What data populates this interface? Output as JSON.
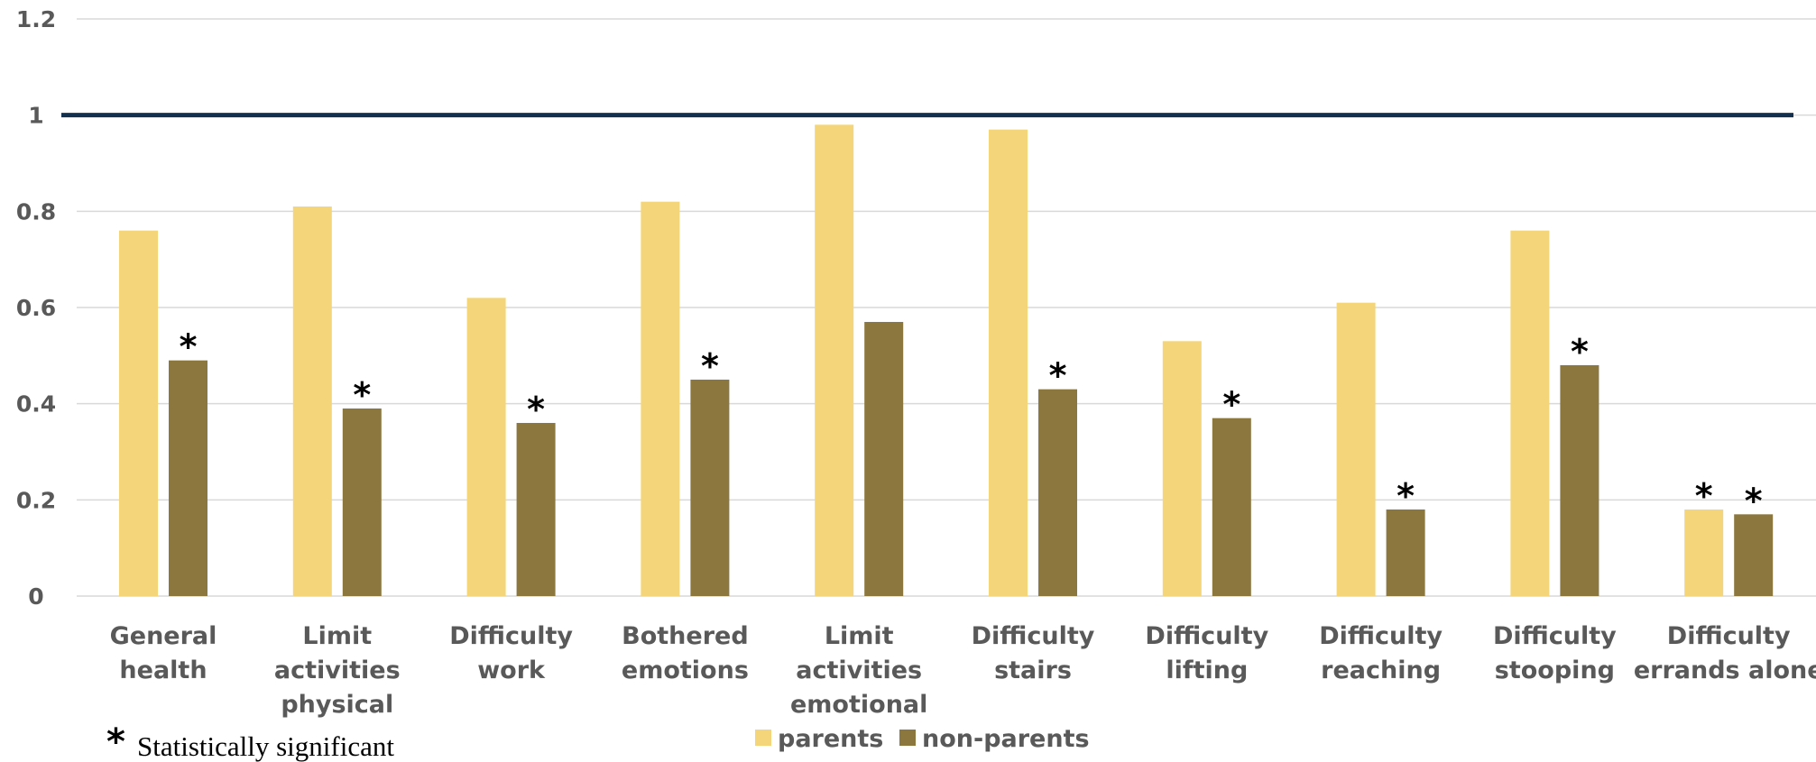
{
  "chart_data": {
    "type": "bar",
    "categories": [
      [
        "General",
        "health"
      ],
      [
        "Limit",
        "activities",
        "physical"
      ],
      [
        "Difficulty",
        "work"
      ],
      [
        "Bothered",
        "emotions"
      ],
      [
        "Limit",
        "activities",
        "emotional"
      ],
      [
        "Difficulty",
        "stairs"
      ],
      [
        "Difficulty",
        "lifting"
      ],
      [
        "Difficulty",
        "reaching"
      ],
      [
        "Difficulty",
        "stooping"
      ],
      [
        "Difficulty",
        "errands alone"
      ]
    ],
    "series": [
      {
        "name": "parents",
        "color": "#F5D57A",
        "values": [
          0.76,
          0.81,
          0.62,
          0.82,
          0.98,
          0.97,
          0.53,
          0.61,
          0.76,
          0.18
        ],
        "significant": [
          false,
          false,
          false,
          false,
          false,
          false,
          false,
          false,
          false,
          true
        ]
      },
      {
        "name": "non-parents",
        "color": "#8C773F",
        "values": [
          0.49,
          0.39,
          0.36,
          0.45,
          0.57,
          0.43,
          0.37,
          0.18,
          0.48,
          0.17
        ],
        "significant": [
          true,
          true,
          true,
          true,
          false,
          true,
          true,
          true,
          true,
          true
        ]
      }
    ],
    "ylim": [
      0,
      1.2
    ],
    "yticks": [
      "0",
      "0.2",
      "0.4",
      "0.6",
      "0.8",
      "1",
      "1.2"
    ],
    "reference_line": {
      "value": 1,
      "color": "#14304F"
    },
    "grid": true,
    "legend_position": "bottom-center",
    "significance_marker": "*",
    "note": {
      "symbol": "*",
      "text": "Statistically significant"
    },
    "title": "",
    "xlabel": "",
    "ylabel": ""
  }
}
